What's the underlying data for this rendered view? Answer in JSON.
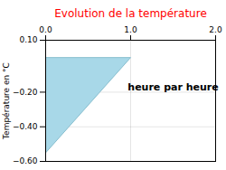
{
  "chart_data": {
    "type": "area",
    "title": "Evolution de la température",
    "ylabel": "Température en °C",
    "annotations": [
      {
        "text": "heure par heure",
        "x": 1.5,
        "y": -0.17
      }
    ],
    "x": [
      0,
      0,
      1,
      0
    ],
    "values": [
      0,
      -0.55,
      0,
      0
    ],
    "color": "#a8d8e8",
    "xlim": [
      0,
      2
    ],
    "ylim": [
      -0.6,
      0.1
    ],
    "xticks": [
      0,
      1,
      2
    ],
    "yticks": [
      0.1,
      -0.2,
      -0.4,
      -0.6
    ],
    "grid": true
  }
}
